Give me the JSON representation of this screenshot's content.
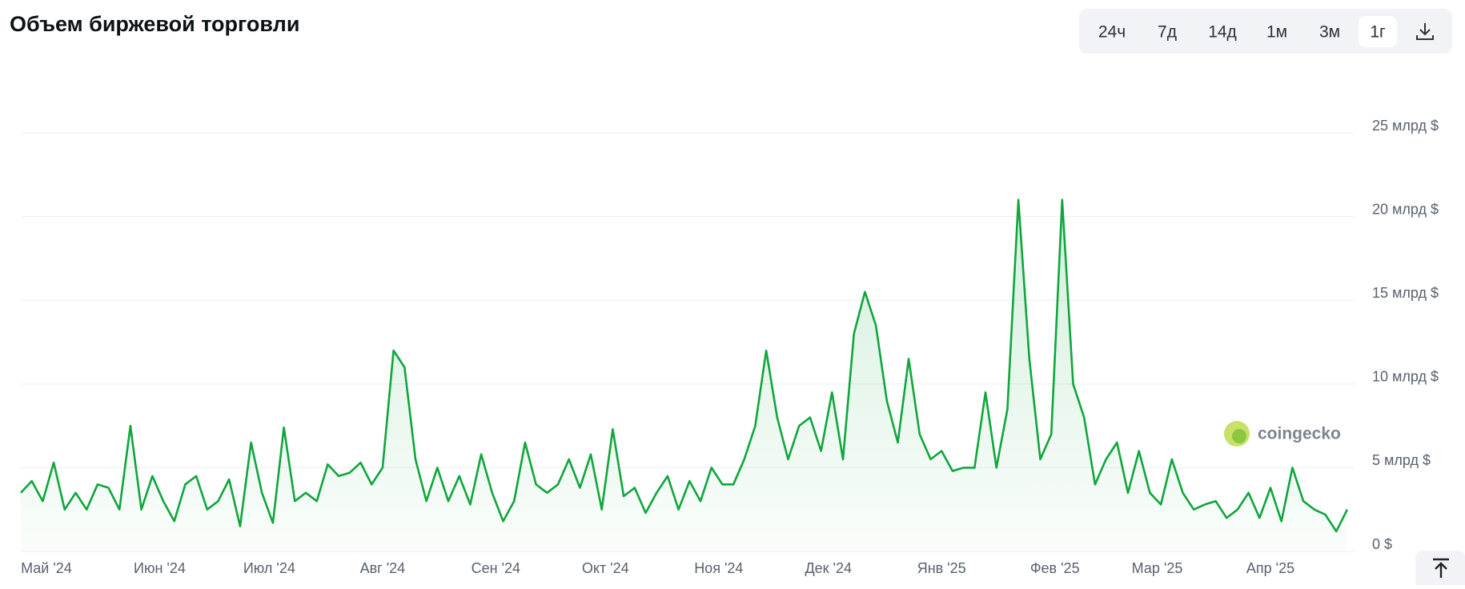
{
  "chart_data": {
    "type": "area",
    "title": "Объем биржевой торговли",
    "buttons": [
      "24ч",
      "7д",
      "14д",
      "1м",
      "3м",
      "1г"
    ],
    "selected_button": 5,
    "watermark": "coingecko",
    "color": "#0fa63c",
    "grid": true,
    "xlim": [
      0,
      365
    ],
    "ylim": [
      0,
      25
    ],
    "yticks": [
      {
        "value": 0,
        "label": "0 $"
      },
      {
        "value": 5,
        "label": "5 млрд $"
      },
      {
        "value": 10,
        "label": "10 млрд $"
      },
      {
        "value": 15,
        "label": "15 млрд $"
      },
      {
        "value": 20,
        "label": "20 млрд $"
      },
      {
        "value": 25,
        "label": "25 млрд $"
      }
    ],
    "xticks": [
      {
        "value": 7,
        "label": "Май '24"
      },
      {
        "value": 38,
        "label": "Июн '24"
      },
      {
        "value": 68,
        "label": "Июл '24"
      },
      {
        "value": 99,
        "label": "Авг '24"
      },
      {
        "value": 130,
        "label": "Сен '24"
      },
      {
        "value": 160,
        "label": "Окт '24"
      },
      {
        "value": 191,
        "label": "Ноя '24"
      },
      {
        "value": 221,
        "label": "Дек '24"
      },
      {
        "value": 252,
        "label": "Янв '25"
      },
      {
        "value": 283,
        "label": "Фев '25"
      },
      {
        "value": 311,
        "label": "Мар '25"
      },
      {
        "value": 342,
        "label": "Апр '25"
      }
    ],
    "x": [
      0,
      3,
      6,
      9,
      12,
      15,
      18,
      21,
      24,
      27,
      30,
      33,
      36,
      39,
      42,
      45,
      48,
      51,
      54,
      57,
      60,
      63,
      66,
      69,
      72,
      75,
      78,
      81,
      84,
      87,
      90,
      93,
      96,
      99,
      102,
      105,
      108,
      111,
      114,
      117,
      120,
      123,
      126,
      129,
      132,
      135,
      138,
      141,
      144,
      147,
      150,
      153,
      156,
      159,
      162,
      165,
      168,
      171,
      174,
      177,
      180,
      183,
      186,
      189,
      192,
      195,
      198,
      201,
      204,
      207,
      210,
      213,
      216,
      219,
      222,
      225,
      228,
      231,
      234,
      237,
      240,
      243,
      246,
      249,
      252,
      255,
      258,
      261,
      264,
      267,
      270,
      273,
      276,
      279,
      282,
      285,
      288,
      291,
      294,
      297,
      300,
      303,
      306,
      309,
      312,
      315,
      318,
      321,
      324,
      327,
      330,
      333,
      336,
      339,
      342,
      345,
      348,
      351,
      354,
      357,
      360,
      363
    ],
    "values": [
      3.5,
      4.2,
      3,
      5.3,
      2.5,
      3.5,
      2.5,
      4,
      3.8,
      2.5,
      7.5,
      2.5,
      4.5,
      3,
      1.8,
      4,
      4.5,
      2.5,
      3,
      4.3,
      1.5,
      6.5,
      3.5,
      1.7,
      7.4,
      3,
      3.5,
      3,
      5.2,
      4.5,
      4.7,
      5.3,
      4,
      5,
      12,
      11,
      5.5,
      3,
      5,
      3,
      4.5,
      2.8,
      5.8,
      3.5,
      1.8,
      3,
      6.5,
      4,
      3.5,
      4,
      5.5,
      3.8,
      5.8,
      2.5,
      7.3,
      3.3,
      3.8,
      2.3,
      3.5,
      4.5,
      2.5,
      4.2,
      3,
      5,
      4,
      4,
      5.5,
      7.5,
      12,
      8,
      5.5,
      7.5,
      8,
      6,
      9.5,
      5.5,
      13,
      15.5,
      13.5,
      9,
      6.5,
      11.5,
      7,
      5.5,
      6,
      4.8,
      5,
      5,
      9.5,
      5,
      8.5,
      21,
      11.5,
      5.5,
      7,
      21,
      10,
      8,
      4,
      5.5,
      6.5,
      3.5,
      6,
      3.5,
      2.8,
      5.5,
      3.5,
      2.5,
      2.8,
      3,
      2,
      2.5,
      3.5,
      2,
      3.8,
      1.8,
      5,
      3,
      2.5,
      2.2,
      1.2,
      2.5
    ]
  }
}
